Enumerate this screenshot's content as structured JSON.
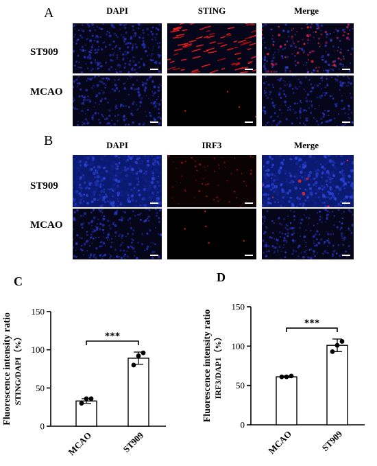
{
  "panel_a": {
    "letter": "A",
    "columns": [
      "DAPI",
      "STING",
      "Merge"
    ],
    "rows": [
      "ST909",
      "MCAO"
    ]
  },
  "panel_b": {
    "letter": "B",
    "columns": [
      "DAPI",
      "IRF3",
      "Merge"
    ],
    "rows": [
      "ST909",
      "MCAO"
    ]
  },
  "chart_data": [
    {
      "panel": "C",
      "type": "bar",
      "categories": [
        "MCAO",
        "ST909"
      ],
      "values": [
        33,
        89
      ],
      "error": [
        3,
        8
      ],
      "points": [
        [
          30,
          36,
          36
        ],
        [
          80,
          92,
          96
        ]
      ],
      "ylabel_line1": "Fluorescence intensity ratio",
      "ylabel_line2": "STING/DAPI（%）",
      "ylim": [
        0,
        150
      ],
      "yticks": [
        0,
        50,
        100,
        150
      ],
      "significance": "***"
    },
    {
      "panel": "D",
      "type": "bar",
      "categories": [
        "MCAO",
        "ST909"
      ],
      "values": [
        61,
        101
      ],
      "error": [
        1,
        8
      ],
      "points": [
        [
          61,
          61,
          62
        ],
        [
          93,
          101,
          106
        ]
      ],
      "ylabel_line1": "Fluorescence intensity ratio",
      "ylabel_line2": "IRF3/DAP1（%）",
      "ylim": [
        0,
        150
      ],
      "yticks": [
        0,
        50,
        100,
        150
      ],
      "significance": "***"
    }
  ]
}
